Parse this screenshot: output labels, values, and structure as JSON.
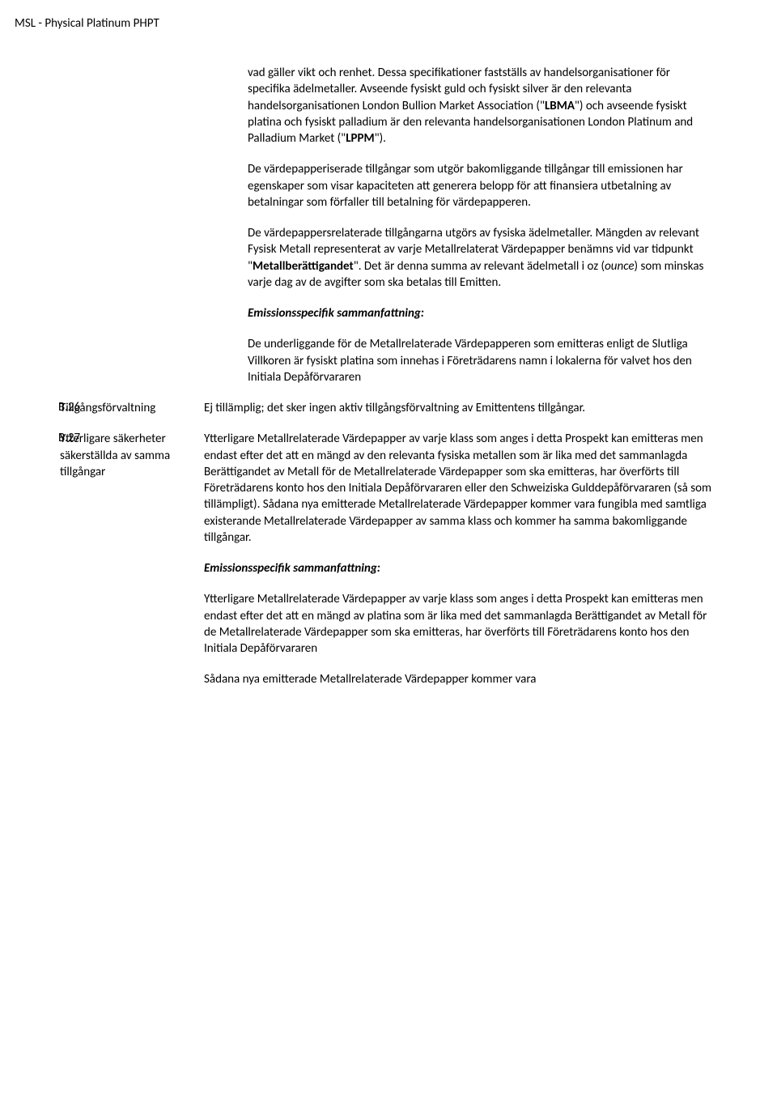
{
  "header": "MSL - Physical Platinum PHPT",
  "intro": {
    "p1_a": "vad gäller vikt och renhet. Dessa specifikationer fastställs av handelsorganisationer för specifika ädelmetaller. Avseende fysiskt guld och fysiskt silver är den relevanta handelsorganisationen London Bullion Market Association (\"",
    "p1_b": "LBMA",
    "p1_c": "\") och avseende fysiskt platina och fysiskt palladium är den relevanta handelsorganisationen London Platinum and Palladium Market (\"",
    "p1_d": "LPPM",
    "p1_e": "\").",
    "p2": "De värdepapperiserade tillgångar som utgör bakomliggande tillgångar till emissionen har egenskaper som visar kapaciteten att generera belopp för att finansiera utbetalning av betalningar som förfaller till betalning för värdepapperen.",
    "p3_a": "De värdepappersrelaterade tillgångarna utgörs av fysiska ädelmetaller. Mängden av relevant Fysisk Metall representerat av varje Metallrelaterat Värdepapper benämns vid var tidpunkt \"",
    "p3_b": "Metallberättigandet",
    "p3_c": "\". Det är denna summa av relevant ädelmetall i oz (",
    "p3_d": "ounce",
    "p3_e": ") som minskas varje dag av de avgifter som ska betalas till Emitten.",
    "p4": "Emissionsspecifik sammanfattning:",
    "p5": "De underliggande för de Metallrelaterade Värdepapperen som emitteras enligt de Slutliga Villkoren är fysiskt  platina som innehas i Företrädarens namn i lokalerna för valvet hos den Initiala Depåförvararen"
  },
  "b26": {
    "num": "B.26",
    "label": "Tillgångsförvaltning",
    "body": "Ej tillämplig; det sker ingen aktiv tillgångsförvaltning av Emittentens tillgångar."
  },
  "b27": {
    "num": "B.27",
    "label": "Ytterligare säkerheter säkerställda av samma tillgångar",
    "p1": "Ytterligare Metallrelaterade Värdepapper av varje klass som anges i detta Prospekt kan emitteras men endast efter det att en mängd av den relevanta fysiska metallen som är lika med det sammanlagda Berättigandet av Metall för de Metallrelaterade Värdepapper som ska emitteras, har överförts till Företrädarens konto hos den Initiala Depåförvararen eller den Schweiziska Gulddepåförvararen (så som tillämpligt). Sådana nya emitterade Metallrelaterade Värdepapper kommer vara fungibla med samtliga existerande Metallrelaterade Värdepapper av samma klass och kommer ha samma bakomliggande tillgångar.",
    "p2": "Emissionsspecifik sammanfattning:",
    "p3": "Ytterligare Metallrelaterade Värdepapper av varje klass som anges i detta Prospekt kan emitteras men endast efter det att en mängd av platina som är lika med det sammanlagda Berättigandet av Metall för de Metallrelaterade Värdepapper som ska emitteras, har överförts till Företrädarens konto hos den Initiala Depåförvararen",
    "p4": "Sådana nya emitterade Metallrelaterade Värdepapper kommer vara"
  }
}
